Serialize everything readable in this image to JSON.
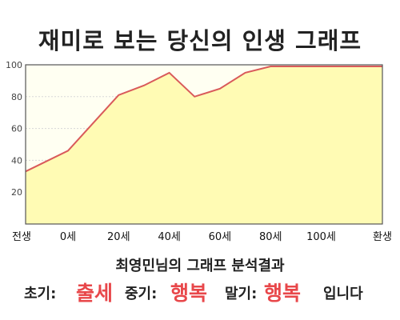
{
  "title": "재미로 보는 당신의 인생 그래프",
  "subtitle": "최영민님의 그래프 분석결과",
  "result": {
    "early_label": "초기:",
    "early_value": "출세",
    "mid_label": "중기:",
    "mid_value": "행복",
    "late_label": "말기:",
    "late_value": "행복",
    "ending": "입니다"
  },
  "colors": {
    "line": "#d95a5a",
    "fill": "#fffbb4",
    "plot_bg": "#fffff2",
    "accent_text": "#e8474a"
  },
  "chart_data": {
    "type": "area",
    "title": "재미로 보는 당신의 인생 그래프",
    "xlabel": "",
    "ylabel": "",
    "x_ticks": [
      "전생",
      "0세",
      "20세",
      "40세",
      "60세",
      "80세",
      "100세",
      "환생"
    ],
    "y_ticks": [
      20,
      40,
      60,
      80,
      100
    ],
    "ylim": [
      0,
      100
    ],
    "grid": true,
    "series": [
      {
        "x": [
          "전생",
          "0세",
          "20세",
          "30세",
          "40세",
          "50세",
          "60세",
          "70세",
          "80세",
          "90세",
          "100세",
          "환생"
        ],
        "values": [
          33,
          46,
          81,
          87,
          95,
          80,
          85,
          95,
          99,
          99,
          99,
          99
        ]
      }
    ]
  }
}
